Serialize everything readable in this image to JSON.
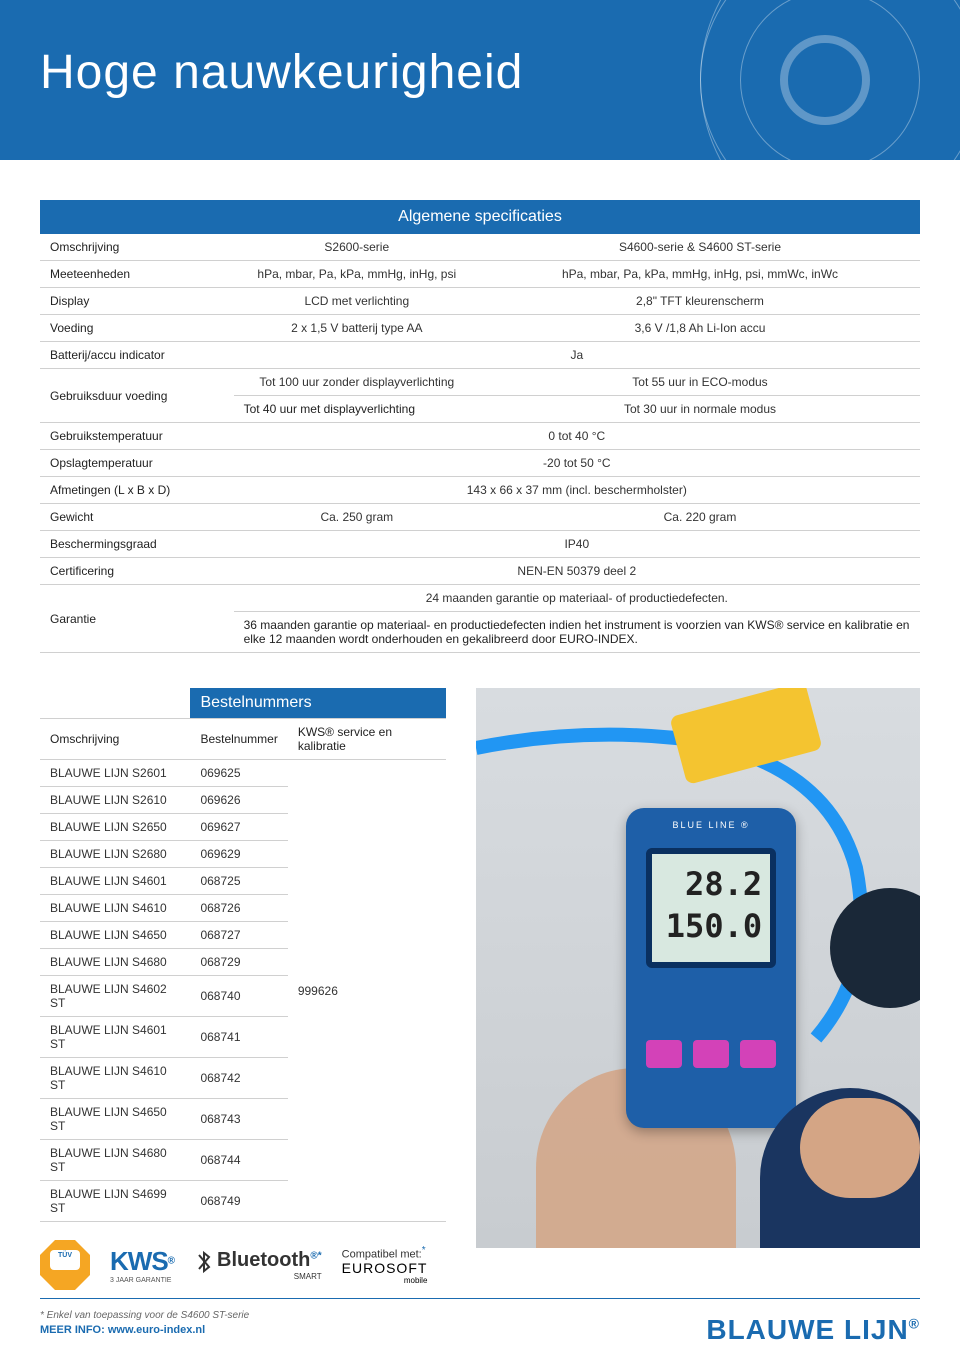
{
  "colors": {
    "brand_blue": "#1a6bb0",
    "header_bg": "#1a6bb0",
    "text": "#333333",
    "border": "#d0d0d0",
    "white": "#ffffff",
    "tuv_orange": "#f5a623",
    "device_blue": "#1e5fa8",
    "hose_blue": "#2196f3",
    "yellow": "#f4c430",
    "btn_magenta": "#d342b8"
  },
  "header": {
    "title": "Hoge nauwkeurigheid"
  },
  "spec_table": {
    "title": "Algemene specificaties",
    "col_widths_pct": [
      22,
      28,
      50
    ],
    "header_row": {
      "col0": "Omschrijving",
      "col1": "S2600-serie",
      "col2": "S4600-serie & S4600 ST-serie"
    },
    "rows": [
      {
        "label": "Meeteenheden",
        "c1": "hPa, mbar, Pa, kPa, mmHg, inHg, psi",
        "c2": "hPa, mbar, Pa, kPa, mmHg, inHg, psi, mmWc, inWc"
      },
      {
        "label": "Display",
        "c1": "LCD met verlichting",
        "c2": "2,8\" TFT kleurenscherm"
      },
      {
        "label": "Voeding",
        "c1": "2 x 1,5 V batterij type AA",
        "c2": "3,6 V /1,8 Ah Li-Ion accu"
      },
      {
        "label": "Batterij/accu indicator",
        "merged": "Ja"
      },
      {
        "label": "Gebruiksduur voeding",
        "sub": [
          {
            "c1": "Tot 100 uur zonder displayverlichting",
            "c2": "Tot 55 uur in ECO-modus"
          },
          {
            "c1": "Tot 40 uur met displayverlichting",
            "c2": "Tot 30 uur in normale modus"
          }
        ]
      },
      {
        "label": "Gebruikstemperatuur",
        "merged": "0 tot 40 °C"
      },
      {
        "label": "Opslagtemperatuur",
        "merged": "-20 tot 50 °C"
      },
      {
        "label": "Afmetingen (L x B x D)",
        "merged": "143 x 66 x 37 mm (incl. beschermholster)"
      },
      {
        "label": "Gewicht",
        "c1": "Ca. 250 gram",
        "c2": "Ca. 220 gram"
      },
      {
        "label": "Beschermingsgraad",
        "merged": "IP40"
      },
      {
        "label": "Certificering",
        "merged": "NEN-EN 50379 deel 2"
      },
      {
        "label": "Garantie",
        "merged_lines": [
          "24 maanden garantie op materiaal- of productiedefecten.",
          "36 maanden garantie op materiaal- en productiedefecten indien het instrument is voorzien van KWS® service en kalibratie en elke 12 maanden wordt onderhouden en gekalibreerd door EURO-INDEX."
        ]
      }
    ]
  },
  "order_table": {
    "title": "Bestelnummers",
    "columns": [
      "Omschrijving",
      "Bestelnummer",
      "KWS® service en kalibratie"
    ],
    "rows": [
      [
        "BLAUWE LIJN S2601",
        "069625",
        ""
      ],
      [
        "BLAUWE LIJN S2610",
        "069626",
        ""
      ],
      [
        "BLAUWE LIJN S2650",
        "069627",
        ""
      ],
      [
        "BLAUWE LIJN S2680",
        "069629",
        ""
      ],
      [
        "BLAUWE LIJN S4601",
        "068725",
        ""
      ],
      [
        "BLAUWE LIJN S4610",
        "068726",
        ""
      ],
      [
        "BLAUWE LIJN S4650",
        "068727",
        "999626"
      ],
      [
        "BLAUWE LIJN S4680",
        "068729",
        ""
      ],
      [
        "BLAUWE LIJN S4602 ST",
        "068740",
        ""
      ],
      [
        "BLAUWE LIJN S4601 ST",
        "068741",
        ""
      ],
      [
        "BLAUWE LIJN S4610 ST",
        "068742",
        ""
      ],
      [
        "BLAUWE LIJN S4650 ST",
        "068743",
        ""
      ],
      [
        "BLAUWE LIJN S4680 ST",
        "068744",
        ""
      ],
      [
        "BLAUWE LIJN S4699 ST",
        "068749",
        ""
      ]
    ],
    "kws_rowspan_start": 0,
    "kws_value": "999626"
  },
  "badges": {
    "tuv": {
      "top": "TÜV",
      "bottom": "SÜD"
    },
    "kws": {
      "main": "KWS",
      "sub": "3 JAAR GARANTIE",
      "reg": "®"
    },
    "bluetooth": {
      "main": "Bluetooth",
      "smart": "SMART",
      "reg": "®"
    },
    "compat_label": "Compatibel met:",
    "eurosoft": {
      "main": "EUROSOFT",
      "sub": "mobile"
    }
  },
  "footnote": "* Enkel van toepassing voor de S4600 ST-serie",
  "device": {
    "label": "BLUE LINE ®",
    "reading1": "28.2",
    "reading2": "150.0"
  },
  "footer": {
    "more_info": "MEER INFO: www.euro-index.nl",
    "brand": "BLAUWE LIJN",
    "reg": "®"
  }
}
